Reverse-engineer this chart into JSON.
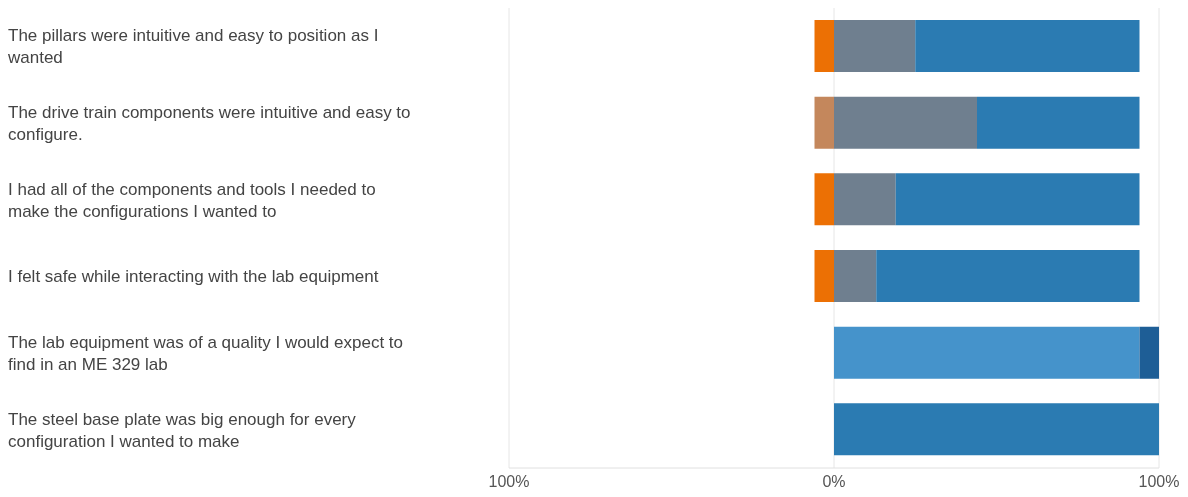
{
  "chart_data": {
    "type": "bar",
    "orientation": "horizontal",
    "stacked": true,
    "categories": [
      "The pillars were intuitive and easy to position as I wanted",
      "The drive train components were intuitive and easy to configure.",
      "I had all of the components and tools I needed to make the configurations I wanted to",
      "I felt safe while interacting with the lab equipment",
      "The lab equipment was of a quality I would expect to find in an ME 329 lab",
      "The steel base plate was big enough for every configuration I wanted to make"
    ],
    "series": [
      {
        "color": "#ec7004",
        "colors": [
          "#ec7004",
          "#c4875c",
          "#ec7004",
          "#ec7004",
          null,
          null
        ],
        "values": [
          -6,
          -6,
          -6,
          -6,
          null,
          null
        ]
      },
      {
        "color": "#6f7f8f",
        "values": [
          25,
          44,
          19,
          13,
          null,
          null
        ]
      },
      {
        "color": "#2b7bb2",
        "colors": [
          "#2b7bb2",
          "#2b7bb2",
          "#2b7bb2",
          "#2b7bb2",
          "#4593cb",
          "#2b7bb2"
        ],
        "values": [
          69,
          50,
          75,
          81,
          94,
          100
        ]
      },
      {
        "color": "#1e5e96",
        "values": [
          null,
          null,
          null,
          null,
          6,
          null
        ]
      }
    ],
    "xlim": [
      -100,
      100
    ],
    "xticks": [
      {
        "value": -100,
        "label": "100%"
      },
      {
        "value": 0,
        "label": "0%"
      },
      {
        "value": 100,
        "label": "100%"
      }
    ],
    "grid": "x",
    "legend": false
  }
}
